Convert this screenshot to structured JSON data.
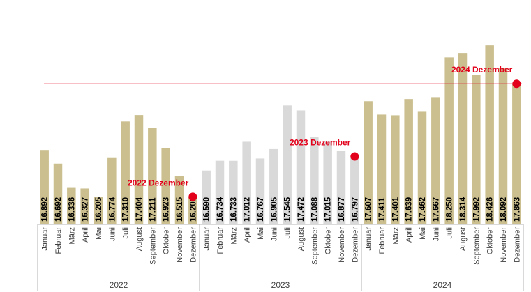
{
  "colors": {
    "highlight": "#cbbf8f",
    "muted": "#d9d9d9",
    "accent": "#e2001a",
    "axis": "#b3b3b3"
  },
  "chart_data": {
    "type": "bar",
    "categories": [
      "Januar",
      "Februar",
      "März",
      "April",
      "Mai",
      "Juni",
      "Juli",
      "August",
      "September",
      "Oktober",
      "November",
      "Dezember",
      "Januar",
      "Februar",
      "März",
      "April",
      "Mai",
      "Juni",
      "Juli",
      "August",
      "September",
      "Oktober",
      "November",
      "Dezember",
      "Januar",
      "Februar",
      "März",
      "April",
      "Mai",
      "Juni",
      "Juli",
      "August",
      "September",
      "Oktober",
      "November",
      "Dezember"
    ],
    "years": [
      "2022",
      "2023",
      "2024"
    ],
    "values": [
      16892,
      16692,
      16336,
      16327,
      16205,
      16774,
      17310,
      17404,
      17211,
      16923,
      16515,
      16205,
      16590,
      16734,
      16733,
      17012,
      16767,
      16905,
      17545,
      17472,
      17088,
      17015,
      16877,
      16797,
      17607,
      17411,
      17401,
      17639,
      17462,
      17667,
      18250,
      18314,
      17992,
      18426,
      18092,
      17863
    ],
    "value_labels": [
      "16.892",
      "16.692",
      "16.336",
      "16.327",
      "16.205",
      "16.774",
      "17.310",
      "17.404",
      "17.211",
      "16.923",
      "16.515",
      "16.205",
      "16.590",
      "16.734",
      "16.733",
      "17.012",
      "16.767",
      "16.905",
      "17.545",
      "17.472",
      "17.088",
      "17.015",
      "16.877",
      "16.797",
      "17.607",
      "17.411",
      "17.401",
      "17.639",
      "17.462",
      "17.667",
      "18.250",
      "18.314",
      "17.992",
      "18.426",
      "18.092",
      "17.863"
    ],
    "bar_color_by_year": [
      "highlight",
      "muted",
      "highlight"
    ],
    "reference_line": {
      "value": 17863
    },
    "markers": [
      {
        "index": 11,
        "label": "2022 Dezember"
      },
      {
        "index": 23,
        "label": "2023 Dezember"
      },
      {
        "index": 35,
        "label": "2024 Dezember"
      }
    ],
    "ylim": [
      15800,
      18540
    ],
    "title": "",
    "xlabel": "",
    "ylabel": "",
    "grid": false
  }
}
